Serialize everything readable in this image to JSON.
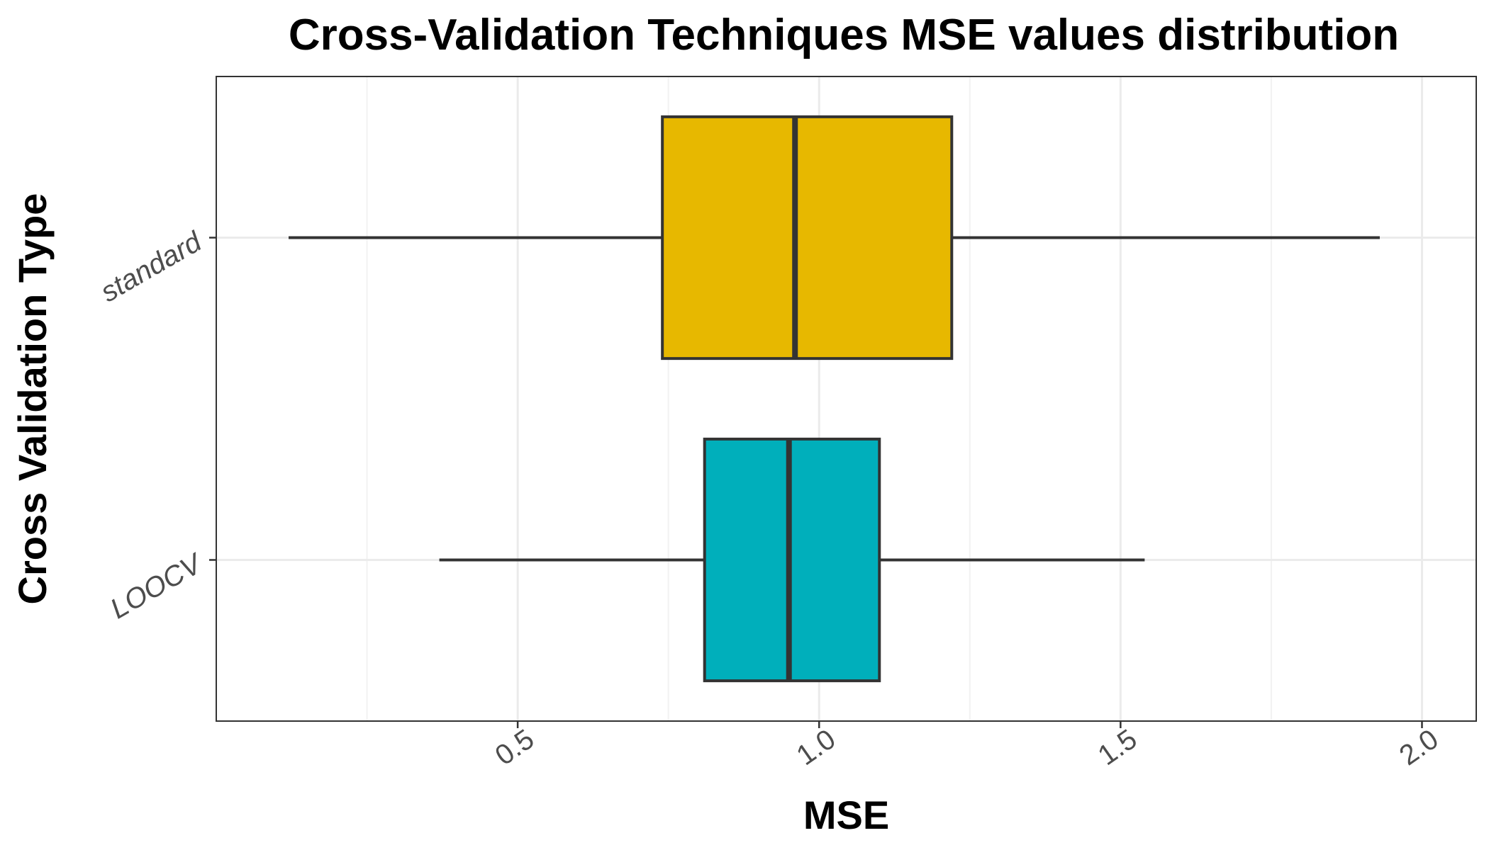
{
  "chart_data": {
    "type": "boxplot",
    "orientation": "horizontal",
    "title": "Cross-Validation Techniques MSE values distribution",
    "xlabel": "MSE",
    "ylabel": "Cross Validation Type",
    "xlim": [
      0,
      2.09
    ],
    "x_ticks": [
      0.5,
      1.0,
      1.5,
      2.0
    ],
    "x_tick_labels": [
      "0.5",
      "1.0",
      "1.5",
      "2.0"
    ],
    "x_minor_ticks": [
      0.25,
      0.75,
      1.25,
      1.75
    ],
    "categories": [
      "standard",
      "LOOCV"
    ],
    "series": [
      {
        "name": "standard",
        "color": "#E7B800",
        "whisker_low": 0.12,
        "q1": 0.74,
        "median": 0.96,
        "q3": 1.22,
        "whisker_high": 1.93
      },
      {
        "name": "LOOCV",
        "color": "#00AFBB",
        "whisker_low": 0.37,
        "q1": 0.81,
        "median": 0.95,
        "q3": 1.1,
        "whisker_high": 1.54
      }
    ],
    "grid": true,
    "legend": "none"
  }
}
